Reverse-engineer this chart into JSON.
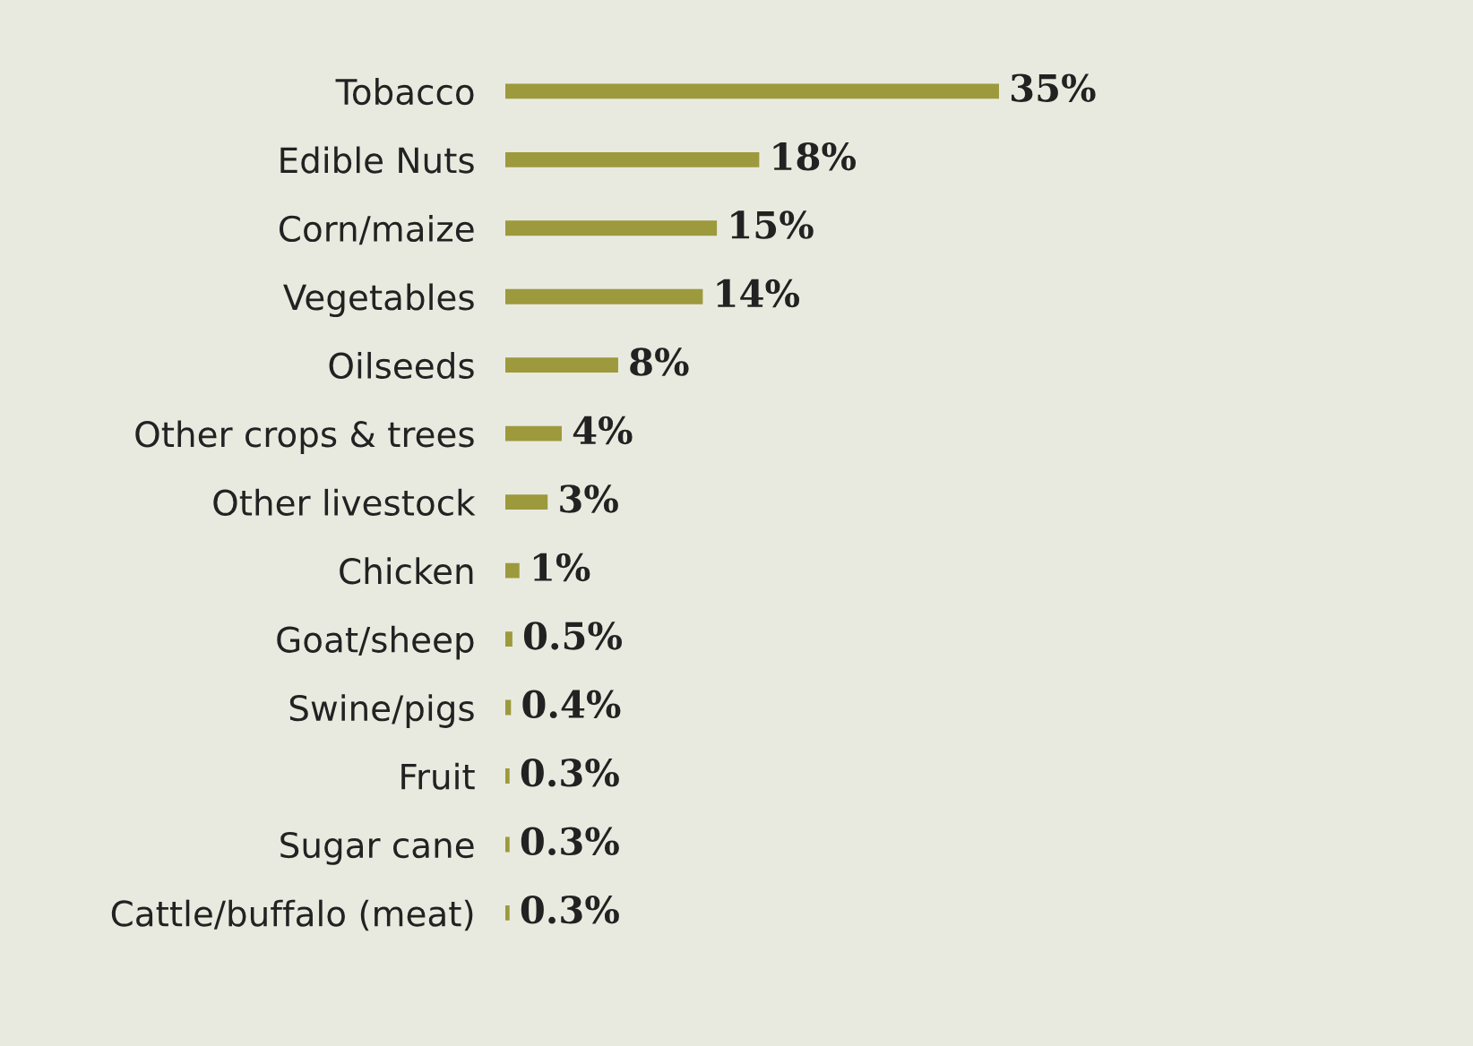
{
  "chart_data": {
    "type": "bar",
    "orientation": "horizontal",
    "categories": [
      "Tobacco",
      "Edible Nuts",
      "Corn/maize",
      "Vegetables",
      "Oilseeds",
      "Other crops & trees",
      "Other livestock",
      "Chicken",
      "Goat/sheep",
      "Swine/pigs",
      "Fruit",
      "Sugar cane",
      "Cattle/buffalo (meat)"
    ],
    "values": [
      35,
      18,
      15,
      14,
      8,
      4,
      3,
      1,
      0.5,
      0.4,
      0.3,
      0.3,
      0.3
    ],
    "value_labels": [
      "35%",
      "18%",
      "15%",
      "14%",
      "8%",
      "4%",
      "3%",
      "1%",
      "0.5%",
      "0.4%",
      "0.3%",
      "0.3%",
      "0.3%"
    ],
    "color": "#9c9a3c",
    "grid": false,
    "legend": false
  }
}
